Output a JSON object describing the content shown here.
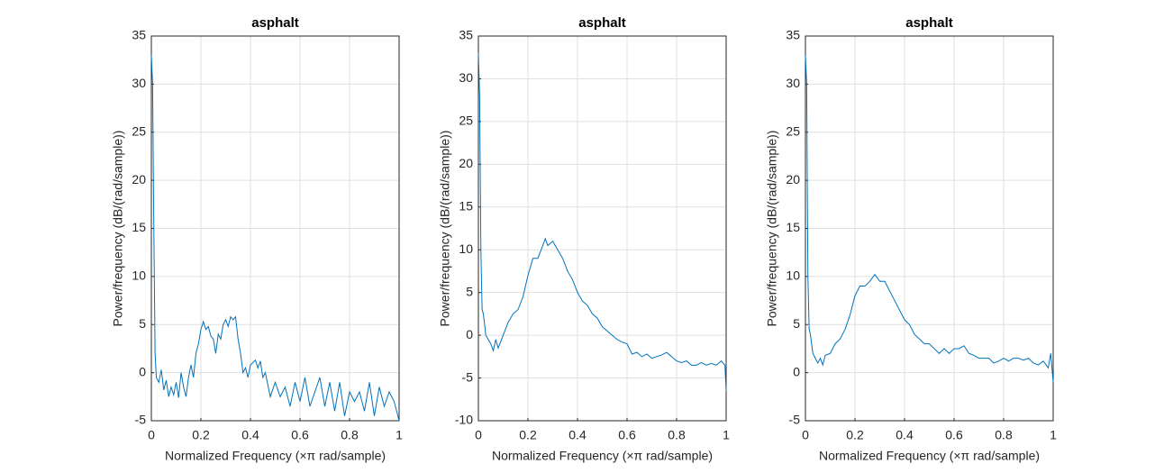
{
  "chart_data": [
    {
      "type": "line",
      "title": "asphalt",
      "xlabel": "Normalized Frequency  (×π rad/sample)",
      "ylabel": "Power/frequency (dB/(rad/sample))",
      "color": "#0072bd",
      "grid": true,
      "xlim": [
        0,
        1
      ],
      "xticks": [
        0,
        0.2,
        0.4,
        0.6,
        0.8,
        1
      ],
      "ylim": [
        -5,
        35
      ],
      "yticks": [
        -5,
        0,
        5,
        10,
        15,
        20,
        25,
        30,
        35
      ],
      "x": [
        0,
        0.005,
        0.01,
        0.015,
        0.02,
        0.03,
        0.04,
        0.05,
        0.06,
        0.07,
        0.08,
        0.09,
        0.1,
        0.11,
        0.12,
        0.13,
        0.14,
        0.15,
        0.16,
        0.17,
        0.18,
        0.19,
        0.2,
        0.21,
        0.22,
        0.23,
        0.24,
        0.25,
        0.26,
        0.27,
        0.28,
        0.29,
        0.3,
        0.31,
        0.32,
        0.33,
        0.34,
        0.35,
        0.36,
        0.37,
        0.38,
        0.39,
        0.4,
        0.42,
        0.43,
        0.44,
        0.45,
        0.46,
        0.48,
        0.5,
        0.52,
        0.54,
        0.56,
        0.58,
        0.6,
        0.62,
        0.64,
        0.66,
        0.68,
        0.7,
        0.72,
        0.74,
        0.76,
        0.78,
        0.8,
        0.82,
        0.84,
        0.86,
        0.88,
        0.9,
        0.92,
        0.94,
        0.96,
        0.98,
        1
      ],
      "values": [
        33,
        30,
        15,
        2,
        -0.5,
        -1,
        0.3,
        -1.8,
        -0.8,
        -2.5,
        -1.5,
        -2.3,
        -1,
        -2.6,
        0,
        -1.5,
        -2.5,
        -0.5,
        0.8,
        -0.5,
        2,
        3,
        4.5,
        5.3,
        4.5,
        4.8,
        3.8,
        3.5,
        2,
        4,
        3.5,
        5,
        5.5,
        4.8,
        5.8,
        5.5,
        5.8,
        3.5,
        2,
        0,
        0.5,
        -0.5,
        0.8,
        1.3,
        0.5,
        1.2,
        -0.5,
        0,
        -2.5,
        -1,
        -2.5,
        -1.5,
        -3.5,
        -1,
        -3,
        -0.5,
        -3.5,
        -2,
        -0.5,
        -3.5,
        -1,
        -4,
        -1,
        -4.5,
        -2,
        -3,
        -2,
        -4,
        -1,
        -4.5,
        -1.5,
        -3.5,
        -2,
        -3,
        -5
      ]
    },
    {
      "type": "line",
      "title": "asphalt",
      "xlabel": "Normalized Frequency  (×π rad/sample)",
      "ylabel": "Power/frequency (dB/(rad/sample))",
      "color": "#0072bd",
      "grid": true,
      "xlim": [
        0,
        1
      ],
      "xticks": [
        0,
        0.2,
        0.4,
        0.6,
        0.8,
        1
      ],
      "ylim": [
        -10,
        35
      ],
      "yticks": [
        -10,
        -5,
        0,
        5,
        10,
        15,
        20,
        25,
        30,
        35
      ],
      "x": [
        0,
        0.005,
        0.01,
        0.015,
        0.02,
        0.03,
        0.04,
        0.05,
        0.06,
        0.07,
        0.08,
        0.1,
        0.12,
        0.14,
        0.16,
        0.18,
        0.2,
        0.22,
        0.24,
        0.26,
        0.27,
        0.28,
        0.3,
        0.32,
        0.34,
        0.36,
        0.38,
        0.4,
        0.42,
        0.44,
        0.46,
        0.48,
        0.5,
        0.52,
        0.54,
        0.56,
        0.58,
        0.6,
        0.62,
        0.64,
        0.66,
        0.68,
        0.7,
        0.72,
        0.74,
        0.76,
        0.78,
        0.8,
        0.82,
        0.84,
        0.86,
        0.88,
        0.9,
        0.92,
        0.94,
        0.96,
        0.98,
        0.995,
        1
      ],
      "values": [
        33,
        28,
        10,
        3,
        2.5,
        0,
        -0.5,
        -1,
        -1.8,
        -0.5,
        -1.5,
        0,
        1.5,
        2.5,
        3,
        4.5,
        7,
        9,
        9,
        10.5,
        11.3,
        10.5,
        11,
        10,
        9,
        7.5,
        6.5,
        5,
        4,
        3.5,
        2.5,
        2,
        1,
        0.5,
        0,
        -0.5,
        -0.8,
        -1,
        -2.2,
        -2,
        -2.5,
        -2.2,
        -2.7,
        -2.5,
        -2.3,
        -2,
        -2.5,
        -3,
        -3.2,
        -3,
        -3.5,
        -3.5,
        -3.2,
        -3.5,
        -3.3,
        -3.5,
        -3,
        -3.5,
        -6.5
      ]
    },
    {
      "type": "line",
      "title": "asphalt",
      "xlabel": "Normalized Frequency  (×π rad/sample)",
      "ylabel": "Power/frequency (dB/(rad/sample))",
      "color": "#0072bd",
      "grid": true,
      "xlim": [
        0,
        1
      ],
      "xticks": [
        0,
        0.2,
        0.4,
        0.6,
        0.8,
        1
      ],
      "ylim": [
        -5,
        35
      ],
      "yticks": [
        -5,
        0,
        5,
        10,
        15,
        20,
        25,
        30,
        35
      ],
      "x": [
        0,
        0.005,
        0.01,
        0.015,
        0.02,
        0.03,
        0.04,
        0.05,
        0.06,
        0.07,
        0.08,
        0.1,
        0.12,
        0.14,
        0.16,
        0.18,
        0.2,
        0.22,
        0.24,
        0.26,
        0.28,
        0.3,
        0.32,
        0.34,
        0.36,
        0.38,
        0.4,
        0.42,
        0.44,
        0.46,
        0.48,
        0.5,
        0.52,
        0.54,
        0.56,
        0.58,
        0.6,
        0.62,
        0.64,
        0.66,
        0.68,
        0.7,
        0.72,
        0.74,
        0.76,
        0.78,
        0.8,
        0.82,
        0.84,
        0.86,
        0.88,
        0.9,
        0.92,
        0.94,
        0.96,
        0.98,
        0.99,
        1
      ],
      "values": [
        33,
        30,
        10,
        4.5,
        4,
        2,
        1.5,
        1,
        1.5,
        0.8,
        1.8,
        2,
        3,
        3.5,
        4.5,
        6,
        8,
        9,
        9,
        9.5,
        10.2,
        9.5,
        9.5,
        8.5,
        7.5,
        6.5,
        5.5,
        5,
        4,
        3.5,
        3,
        3,
        2.5,
        2,
        2.5,
        2,
        2.5,
        2.5,
        2.8,
        2,
        1.8,
        1.5,
        1.5,
        1.5,
        1,
        1.2,
        1.5,
        1.2,
        1.5,
        1.5,
        1.3,
        1.5,
        1,
        0.8,
        1.2,
        0.5,
        2,
        -1
      ]
    }
  ]
}
